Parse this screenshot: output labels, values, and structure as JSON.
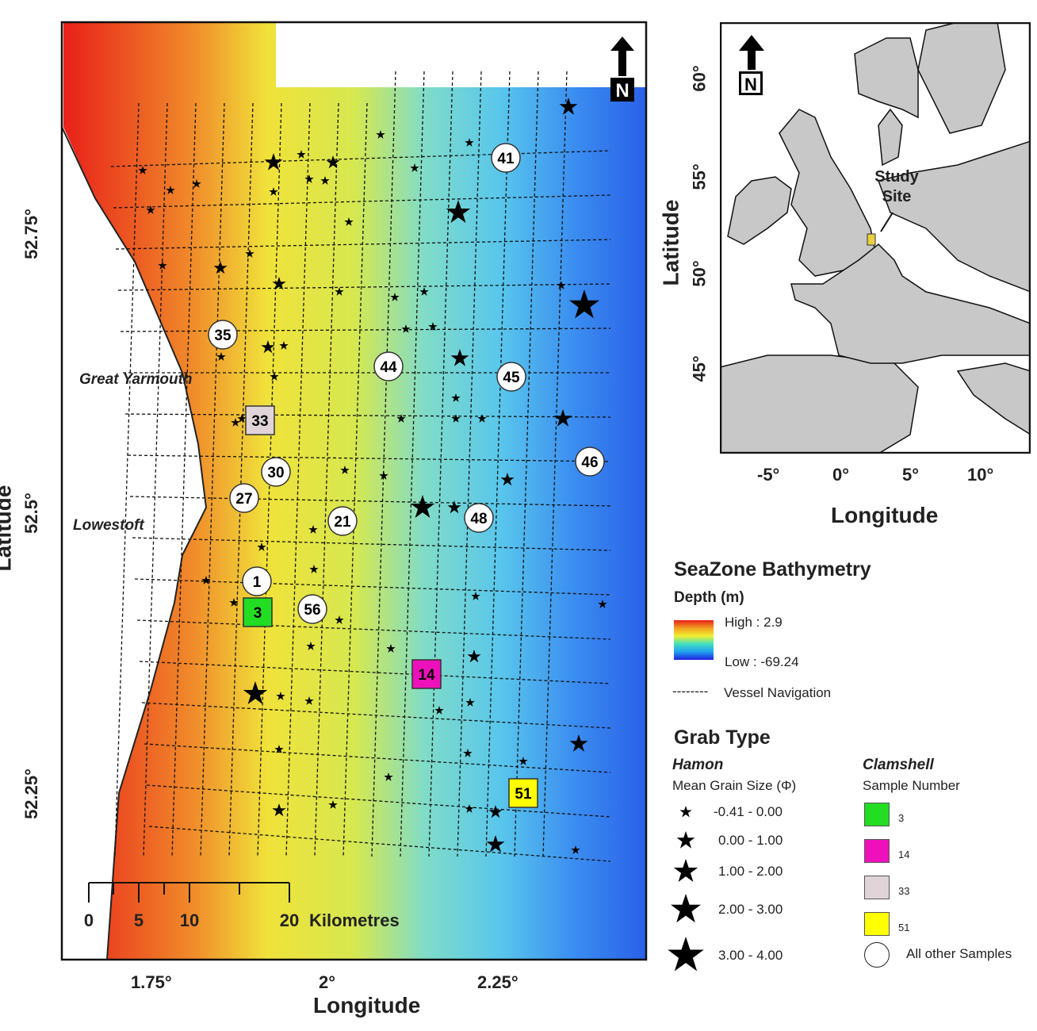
{
  "main_map": {
    "x_axis_title": "Longitude",
    "y_axis_title": "Latitude",
    "x_ticks": [
      "1.75°",
      "2°",
      "2.25°"
    ],
    "y_ticks": [
      "52.75°",
      "52.5°",
      "52.25°"
    ],
    "places": [
      "Great Yarmouth",
      "Lowestoft"
    ],
    "north_label": "N",
    "scale_bar": {
      "ticks": [
        "0",
        "5",
        "10",
        "20"
      ],
      "unit": "Kilometres"
    },
    "clamshell_samples": [
      {
        "label": "3",
        "color": "#22dd22"
      },
      {
        "label": "14",
        "color": "#ee11bb"
      },
      {
        "label": "33",
        "color": "#e0d4d8"
      },
      {
        "label": "51",
        "color": "#ffff00"
      }
    ],
    "other_samples": [
      "41",
      "35",
      "44",
      "45",
      "46",
      "30",
      "27",
      "48",
      "21",
      "1",
      "56"
    ],
    "hamon_samples_grain_class": [
      1,
      1,
      1,
      1,
      1,
      2,
      1,
      3,
      1,
      1,
      1,
      1,
      2,
      1,
      1,
      4,
      1,
      2,
      1,
      1,
      1,
      1,
      1,
      3,
      2,
      1,
      1,
      1,
      1,
      1,
      1,
      3,
      2,
      1,
      1,
      1,
      1,
      1,
      1,
      1,
      1,
      1,
      4,
      1,
      1,
      1,
      1,
      2,
      1,
      1,
      3,
      1,
      1,
      1,
      1,
      2,
      1,
      2,
      3,
      1,
      1,
      1,
      1,
      1,
      1,
      1,
      1,
      5,
      4,
      2,
      3
    ]
  },
  "inset_map": {
    "x_axis_title": "Longitude",
    "y_axis_title": "Latitude",
    "x_ticks": [
      "-5°",
      "0°",
      "5°",
      "10°"
    ],
    "y_ticks": [
      "60°",
      "55°",
      "50°",
      "45°"
    ],
    "annotation": [
      "Study",
      "Site"
    ],
    "north_label": "N"
  },
  "legend": {
    "title": "SeaZone Bathymetry",
    "depth_title": "Depth (m)",
    "high": "High : 2.9",
    "low": "Low : -69.24",
    "nav_line": "--------",
    "nav": "Vessel Navigation",
    "grab_title": "Grab Type",
    "hamon_title": "Hamon",
    "hamon_sub": "Mean Grain Size (Φ)",
    "hamon_classes": [
      "-0.41 - 0.00",
      "0.00 - 1.00",
      "1.00 - 2.00",
      "2.00 - 3.00",
      "3.00 - 4.00"
    ],
    "clam_title": "Clamshell",
    "clam_sub": "Sample Number",
    "clam_items": [
      {
        "label": "3",
        "color": "#22dd22"
      },
      {
        "label": "14",
        "color": "#ee11bb"
      },
      {
        "label": "33",
        "color": "#e0d4d8"
      },
      {
        "label": "51",
        "color": "#ffff00"
      }
    ],
    "other_label": "All other Samples",
    "colors": {
      "high": "#e8201a",
      "mid": "#f0e23a",
      "cyan": "#59d6e6",
      "low": "#1c3fe0"
    }
  }
}
